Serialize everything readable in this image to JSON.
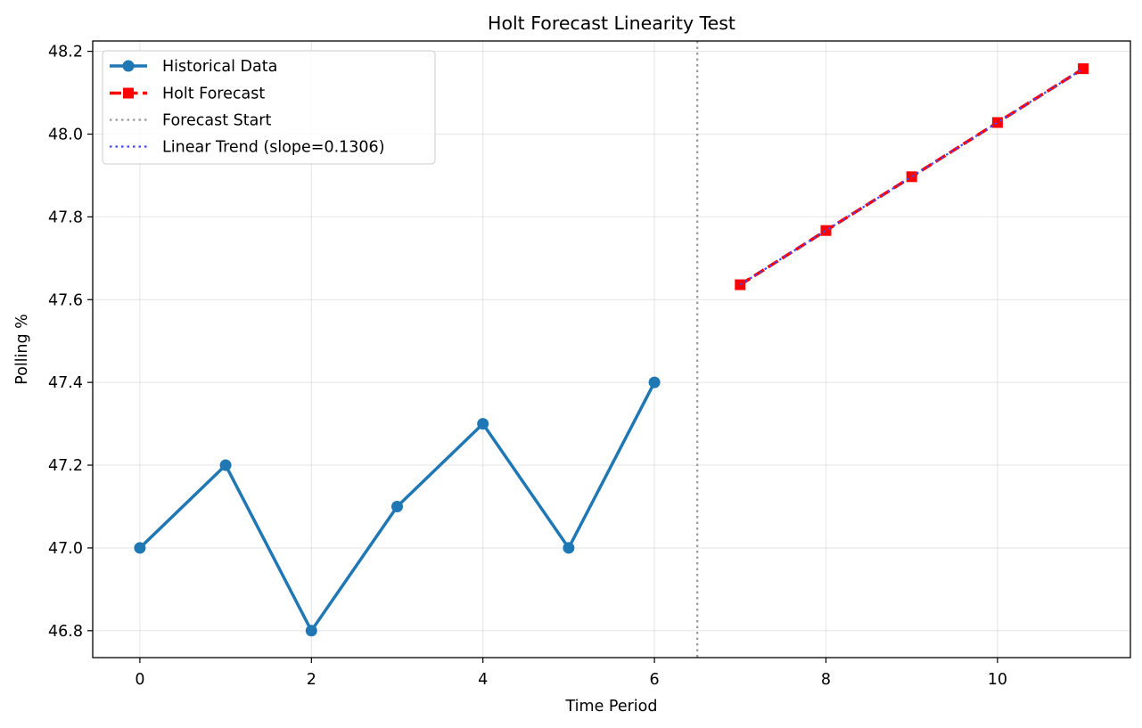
{
  "chart_data": {
    "type": "line",
    "title": "Holt Forecast Linearity Test",
    "xlabel": "Time Period",
    "ylabel": "Polling %",
    "xlim": [
      -0.55,
      11.55
    ],
    "ylim": [
      46.735,
      48.225
    ],
    "x_ticks": [
      0,
      2,
      4,
      6,
      8,
      10
    ],
    "y_ticks": [
      46.8,
      47.0,
      47.2,
      47.4,
      47.6,
      47.8,
      48.0,
      48.2
    ],
    "grid": true,
    "legend_position": "top-left",
    "series": [
      {
        "name": "Historical Data",
        "style": "solid line with circle markers",
        "color": "#1f77b4",
        "x": [
          0,
          1,
          2,
          3,
          4,
          5,
          6
        ],
        "y": [
          47.0,
          47.2,
          46.8,
          47.1,
          47.3,
          47.0,
          47.4
        ]
      },
      {
        "name": "Holt Forecast",
        "style": "dashed line with square markers",
        "color": "#ff0000",
        "x": [
          7,
          8,
          9,
          10,
          11
        ],
        "y": [
          47.636,
          47.767,
          47.897,
          48.028,
          48.158
        ]
      },
      {
        "name": "Forecast Start",
        "style": "dotted vertical line",
        "color": "#999999",
        "x_value": 6.5
      },
      {
        "name": "Linear Trend (slope=0.1306)",
        "style": "dotted line",
        "color": "#4444ff",
        "x": [
          7,
          8,
          9,
          10,
          11
        ],
        "y": [
          47.636,
          47.767,
          47.897,
          48.028,
          48.158
        ]
      }
    ]
  }
}
